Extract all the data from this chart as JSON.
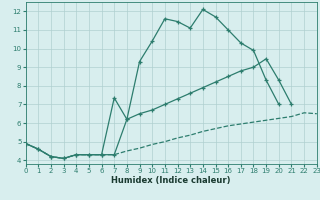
{
  "upper_x": [
    0,
    1,
    2,
    3,
    4,
    5,
    6,
    7,
    8,
    9,
    10,
    11,
    12,
    13,
    14,
    15,
    16,
    17,
    18,
    19,
    20
  ],
  "upper_y": [
    4.9,
    4.6,
    4.2,
    4.1,
    4.3,
    4.3,
    4.3,
    4.3,
    6.2,
    9.3,
    10.4,
    11.6,
    11.45,
    11.1,
    12.1,
    11.7,
    11.0,
    10.3,
    9.9,
    8.3,
    7.0
  ],
  "mid_x": [
    0,
    1,
    2,
    3,
    4,
    5,
    6,
    7,
    8,
    9,
    10,
    11,
    12,
    13,
    14,
    15,
    16,
    17,
    18,
    19,
    20,
    21,
    22,
    23
  ],
  "mid_y": [
    4.9,
    4.6,
    4.2,
    4.1,
    4.3,
    4.3,
    4.3,
    7.35,
    6.2,
    6.5,
    6.7,
    7.0,
    7.3,
    7.6,
    7.9,
    8.2,
    8.5,
    8.8,
    9.0,
    9.45,
    8.3,
    7.0,
    null,
    null
  ],
  "low_x": [
    0,
    1,
    2,
    3,
    4,
    5,
    6,
    7,
    8,
    9,
    10,
    11,
    12,
    13,
    14,
    15,
    16,
    17,
    18,
    19,
    20,
    21,
    22,
    23
  ],
  "low_y": [
    4.9,
    4.6,
    4.2,
    4.1,
    4.3,
    4.3,
    4.3,
    4.3,
    4.5,
    4.65,
    4.85,
    5.0,
    5.2,
    5.35,
    5.55,
    5.7,
    5.85,
    5.95,
    6.05,
    6.15,
    6.25,
    6.35,
    6.55,
    6.5
  ],
  "color": "#2d7d6e",
  "bg_color": "#d8eeee",
  "grid_color": "#b0d0d0",
  "xlabel": "Humidex (Indice chaleur)",
  "xlim": [
    0,
    23
  ],
  "ylim": [
    3.8,
    12.5
  ],
  "yticks": [
    4,
    5,
    6,
    7,
    8,
    9,
    10,
    11,
    12
  ],
  "xticks": [
    0,
    1,
    2,
    3,
    4,
    5,
    6,
    7,
    8,
    9,
    10,
    11,
    12,
    13,
    14,
    15,
    16,
    17,
    18,
    19,
    20,
    21,
    22,
    23
  ]
}
